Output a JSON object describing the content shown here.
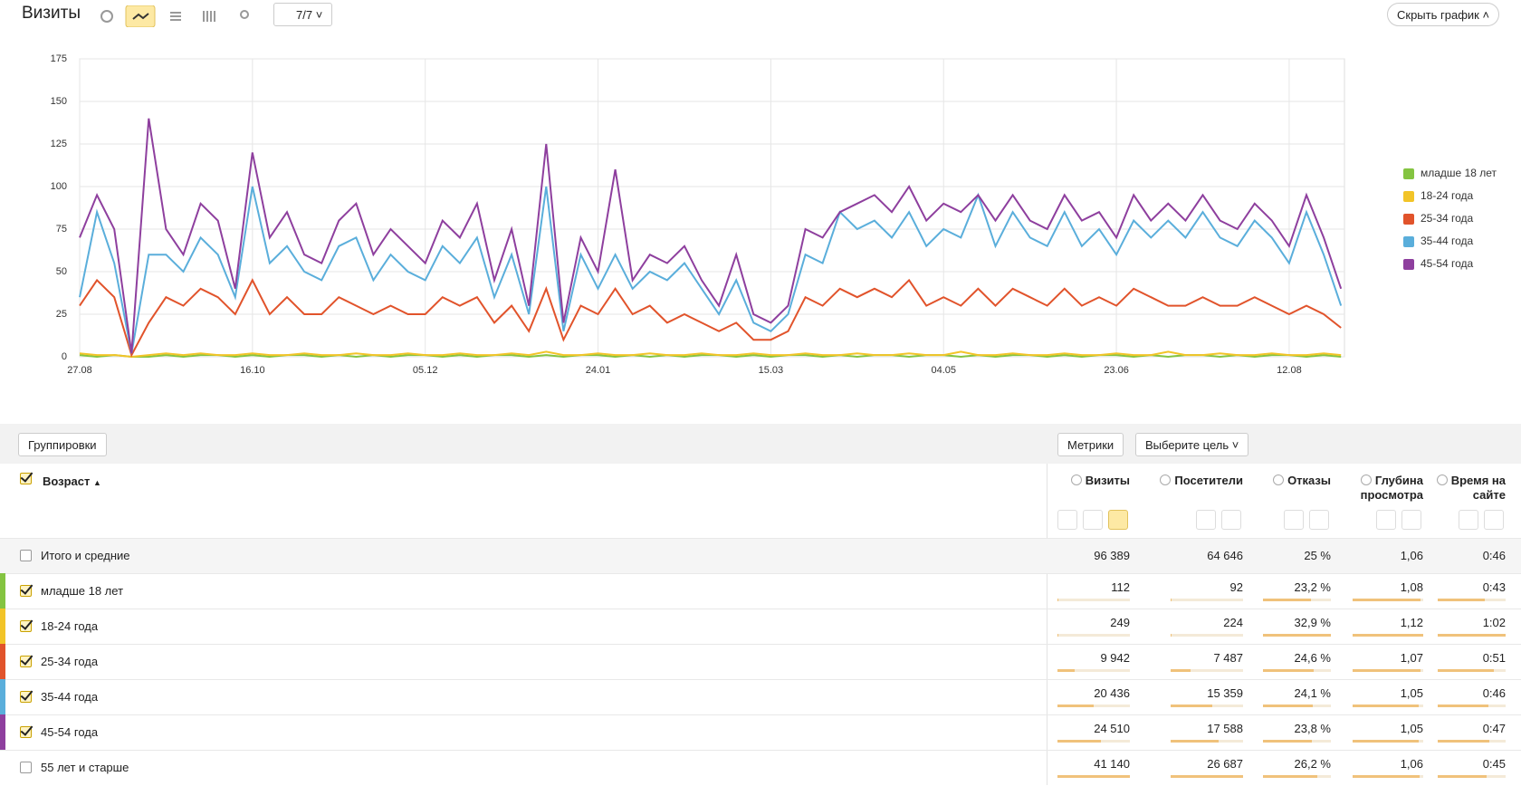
{
  "toolbar": {
    "title": "Визиты",
    "notes_button": "7/7",
    "hide_chart_button": "Скрыть график"
  },
  "chart_data": {
    "type": "line",
    "grid": true,
    "legend": "right",
    "x": [
      0,
      5,
      10,
      15,
      20,
      25,
      30,
      35,
      40,
      45,
      50,
      55,
      60,
      65,
      70,
      75,
      80,
      85,
      90,
      95,
      100,
      105,
      110,
      115,
      120,
      125,
      130,
      135,
      140,
      145,
      150,
      155,
      160,
      165,
      170,
      175,
      180,
      185,
      190,
      195,
      200,
      205,
      210,
      215,
      220,
      225,
      230,
      235,
      240,
      245,
      250,
      255,
      260,
      265,
      270,
      275,
      280,
      285,
      290,
      295,
      300,
      305,
      310,
      315,
      320,
      325,
      330,
      335,
      340,
      345,
      350,
      355,
      360,
      365
    ],
    "xlim": [
      0,
      366
    ],
    "xticks": [
      {
        "value": 0,
        "label": "27.08"
      },
      {
        "value": 50,
        "label": "16.10"
      },
      {
        "value": 100,
        "label": "05.12"
      },
      {
        "value": 150,
        "label": "24.01"
      },
      {
        "value": 200,
        "label": "15.03"
      },
      {
        "value": 250,
        "label": "04.05"
      },
      {
        "value": 300,
        "label": "23.06"
      },
      {
        "value": 350,
        "label": "12.08"
      }
    ],
    "ylim": [
      0,
      175
    ],
    "yticks": [
      0,
      25,
      50,
      75,
      100,
      125,
      150,
      175
    ],
    "series": [
      {
        "name": "младше 18 лет",
        "color": "#84c441",
        "values": [
          1,
          0,
          1,
          0,
          0,
          1,
          0,
          1,
          1,
          0,
          1,
          0,
          1,
          1,
          0,
          1,
          0,
          1,
          0,
          1,
          1,
          0,
          1,
          0,
          1,
          1,
          0,
          1,
          0,
          1,
          1,
          0,
          1,
          0,
          1,
          0,
          1,
          1,
          0,
          1,
          0,
          1,
          1,
          0,
          1,
          0,
          1,
          1,
          0,
          1,
          1,
          0,
          1,
          0,
          1,
          1,
          0,
          1,
          0,
          1,
          1,
          0,
          1,
          0,
          1,
          1,
          0,
          1,
          0,
          1,
          1,
          0,
          1,
          0
        ]
      },
      {
        "name": "18-24 года",
        "color": "#f2c428",
        "values": [
          2,
          1,
          1,
          0,
          1,
          2,
          1,
          2,
          1,
          1,
          2,
          1,
          1,
          2,
          1,
          1,
          2,
          1,
          1,
          2,
          1,
          1,
          2,
          1,
          1,
          2,
          1,
          3,
          1,
          1,
          2,
          1,
          1,
          2,
          1,
          1,
          2,
          1,
          1,
          2,
          1,
          1,
          2,
          1,
          1,
          2,
          1,
          1,
          2,
          1,
          1,
          3,
          1,
          1,
          2,
          1,
          1,
          2,
          1,
          1,
          2,
          1,
          1,
          3,
          1,
          1,
          2,
          1,
          1,
          2,
          1,
          1,
          2,
          1
        ]
      },
      {
        "name": "25-34 года",
        "color": "#e1532b",
        "values": [
          30,
          45,
          35,
          1,
          20,
          35,
          30,
          40,
          35,
          25,
          45,
          25,
          35,
          25,
          25,
          35,
          30,
          25,
          30,
          25,
          25,
          35,
          30,
          35,
          20,
          30,
          15,
          40,
          10,
          30,
          25,
          40,
          25,
          30,
          20,
          25,
          20,
          15,
          20,
          10,
          10,
          15,
          35,
          30,
          40,
          35,
          40,
          35,
          45,
          30,
          35,
          30,
          40,
          30,
          40,
          35,
          30,
          40,
          30,
          35,
          30,
          40,
          35,
          30,
          30,
          35,
          30,
          30,
          35,
          30,
          25,
          30,
          25,
          17
        ]
      },
      {
        "name": "35-44 года",
        "color": "#5aaedb",
        "values": [
          35,
          85,
          55,
          2,
          60,
          60,
          50,
          70,
          60,
          35,
          100,
          55,
          65,
          50,
          45,
          65,
          70,
          45,
          60,
          50,
          45,
          65,
          55,
          70,
          35,
          60,
          25,
          100,
          15,
          60,
          40,
          60,
          40,
          50,
          45,
          55,
          40,
          25,
          45,
          20,
          15,
          25,
          60,
          55,
          85,
          75,
          80,
          70,
          85,
          65,
          75,
          70,
          95,
          65,
          85,
          70,
          65,
          85,
          65,
          75,
          60,
          80,
          70,
          80,
          70,
          85,
          70,
          65,
          80,
          70,
          55,
          85,
          60,
          30
        ]
      },
      {
        "name": "45-54 года",
        "color": "#8e3f9e",
        "values": [
          70,
          95,
          75,
          2,
          140,
          75,
          60,
          90,
          80,
          40,
          120,
          70,
          85,
          60,
          55,
          80,
          90,
          60,
          75,
          65,
          55,
          80,
          70,
          90,
          45,
          75,
          30,
          125,
          20,
          70,
          50,
          110,
          45,
          60,
          55,
          65,
          45,
          30,
          60,
          25,
          20,
          30,
          75,
          70,
          85,
          90,
          95,
          85,
          100,
          80,
          90,
          85,
          95,
          80,
          95,
          80,
          75,
          95,
          80,
          85,
          70,
          95,
          80,
          90,
          80,
          95,
          80,
          75,
          90,
          80,
          65,
          95,
          70,
          40
        ]
      }
    ]
  },
  "table": {
    "groupings_button": "Группировки",
    "metrics_button": "Метрики",
    "goal_button": "Выберите цель",
    "dimension": "Возраст",
    "sort_indicator": "▲",
    "columns": [
      "Визиты",
      "Посетители",
      "Отказы",
      "Глубина просмотра",
      "Время на сайте"
    ],
    "rows": [
      {
        "label": "Итого и средние",
        "checked": false,
        "values": [
          "96 389",
          "64 646",
          "25 %",
          "1,06",
          "0:46"
        ]
      },
      {
        "label": "младше 18 лет",
        "checked": true,
        "color": "#84c441",
        "values": [
          "112",
          "92",
          "23,2 %",
          "1,08",
          "0:43"
        ]
      },
      {
        "label": "18-24 года",
        "checked": true,
        "color": "#f2c428",
        "values": [
          "249",
          "224",
          "32,9 %",
          "1,12",
          "1:02"
        ]
      },
      {
        "label": "25-34 года",
        "checked": true,
        "color": "#e1532b",
        "values": [
          "9 942",
          "7 487",
          "24,6 %",
          "1,07",
          "0:51"
        ]
      },
      {
        "label": "35-44 года",
        "checked": true,
        "color": "#5aaedb",
        "values": [
          "20 436",
          "15 359",
          "24,1 %",
          "1,05",
          "0:46"
        ]
      },
      {
        "label": "45-54 года",
        "checked": true,
        "color": "#8e3f9e",
        "values": [
          "24 510",
          "17 588",
          "23,8 %",
          "1,05",
          "0:47"
        ]
      },
      {
        "label": "55 лет и старше",
        "checked": false,
        "values": [
          "41 140",
          "26 687",
          "26,2 %",
          "1,06",
          "0:45"
        ]
      }
    ]
  }
}
